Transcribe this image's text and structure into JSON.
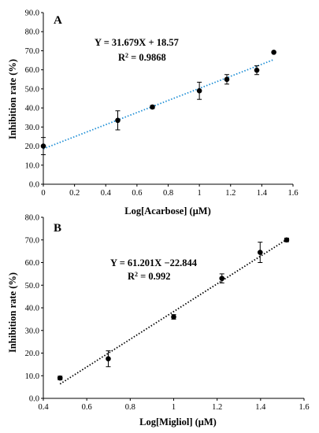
{
  "chart_data": [
    {
      "type": "scatter",
      "panel_label": "A",
      "xlabel": "Log[Acarbose] (μM)",
      "ylabel": "Inhibition rate (%)",
      "xlim": [
        0,
        1.6
      ],
      "ylim": [
        0,
        90
      ],
      "xticks": [
        "0",
        "0.2",
        "0.4",
        "0.6",
        "0.8",
        "1",
        "1.2",
        "1.4",
        "1.6"
      ],
      "yticks": [
        "0.0",
        "10.0",
        "20.0",
        "30.0",
        "40.0",
        "50.0",
        "60.0",
        "70.0",
        "80.0",
        "90.0"
      ],
      "grid": false,
      "legend": "none",
      "equation": "Y = 31.679X + 18.57",
      "r2_label": "R",
      "r2_value": " = 0.9868",
      "trendline": {
        "slope": 31.679,
        "intercept": 18.57,
        "x_range": [
          0,
          1.48
        ],
        "style": "dotted",
        "color": "#1f8fd6"
      },
      "points": [
        {
          "x": 0,
          "y": 20.0,
          "err": 4.5
        },
        {
          "x": 0.477,
          "y": 33.5,
          "err": 5.0
        },
        {
          "x": 0.699,
          "y": 40.5,
          "err": 0.8
        },
        {
          "x": 1.0,
          "y": 49.0,
          "err": 4.5
        },
        {
          "x": 1.176,
          "y": 55.0,
          "err": 2.5
        },
        {
          "x": 1.368,
          "y": 59.8,
          "err": 2.3
        },
        {
          "x": 1.477,
          "y": 69.2,
          "err": 0
        }
      ]
    },
    {
      "type": "scatter",
      "panel_label": "B",
      "xlabel": "Log[Migliol] (μM)",
      "ylabel": "Inhibition rate (%)",
      "xlim": [
        0.4,
        1.6
      ],
      "ylim": [
        0,
        80
      ],
      "xticks": [
        "0.4",
        "0.6",
        "0.8",
        "1",
        "1.2",
        "1.4",
        "1.6"
      ],
      "yticks": [
        "0.0",
        "10.0",
        "20.0",
        "30.0",
        "40.0",
        "50.0",
        "60.0",
        "70.0",
        "80.0"
      ],
      "grid": false,
      "legend": "none",
      "equation": "Y = 61.201X −22.844",
      "r2_label": "R",
      "r2_value": " = 0.992",
      "trendline": {
        "slope": 61.201,
        "intercept": -22.844,
        "x_range": [
          0.477,
          1.52
        ],
        "style": "dotted",
        "color": "#000000"
      },
      "points": [
        {
          "x": 0.477,
          "y": 9.0,
          "err": 0.8
        },
        {
          "x": 0.699,
          "y": 17.5,
          "err": 3.5
        },
        {
          "x": 1.0,
          "y": 36.0,
          "err": 1.0
        },
        {
          "x": 1.222,
          "y": 53.0,
          "err": 2.0
        },
        {
          "x": 1.398,
          "y": 64.5,
          "err": 4.5
        },
        {
          "x": 1.52,
          "y": 70.0,
          "err": 0.8
        }
      ]
    }
  ]
}
